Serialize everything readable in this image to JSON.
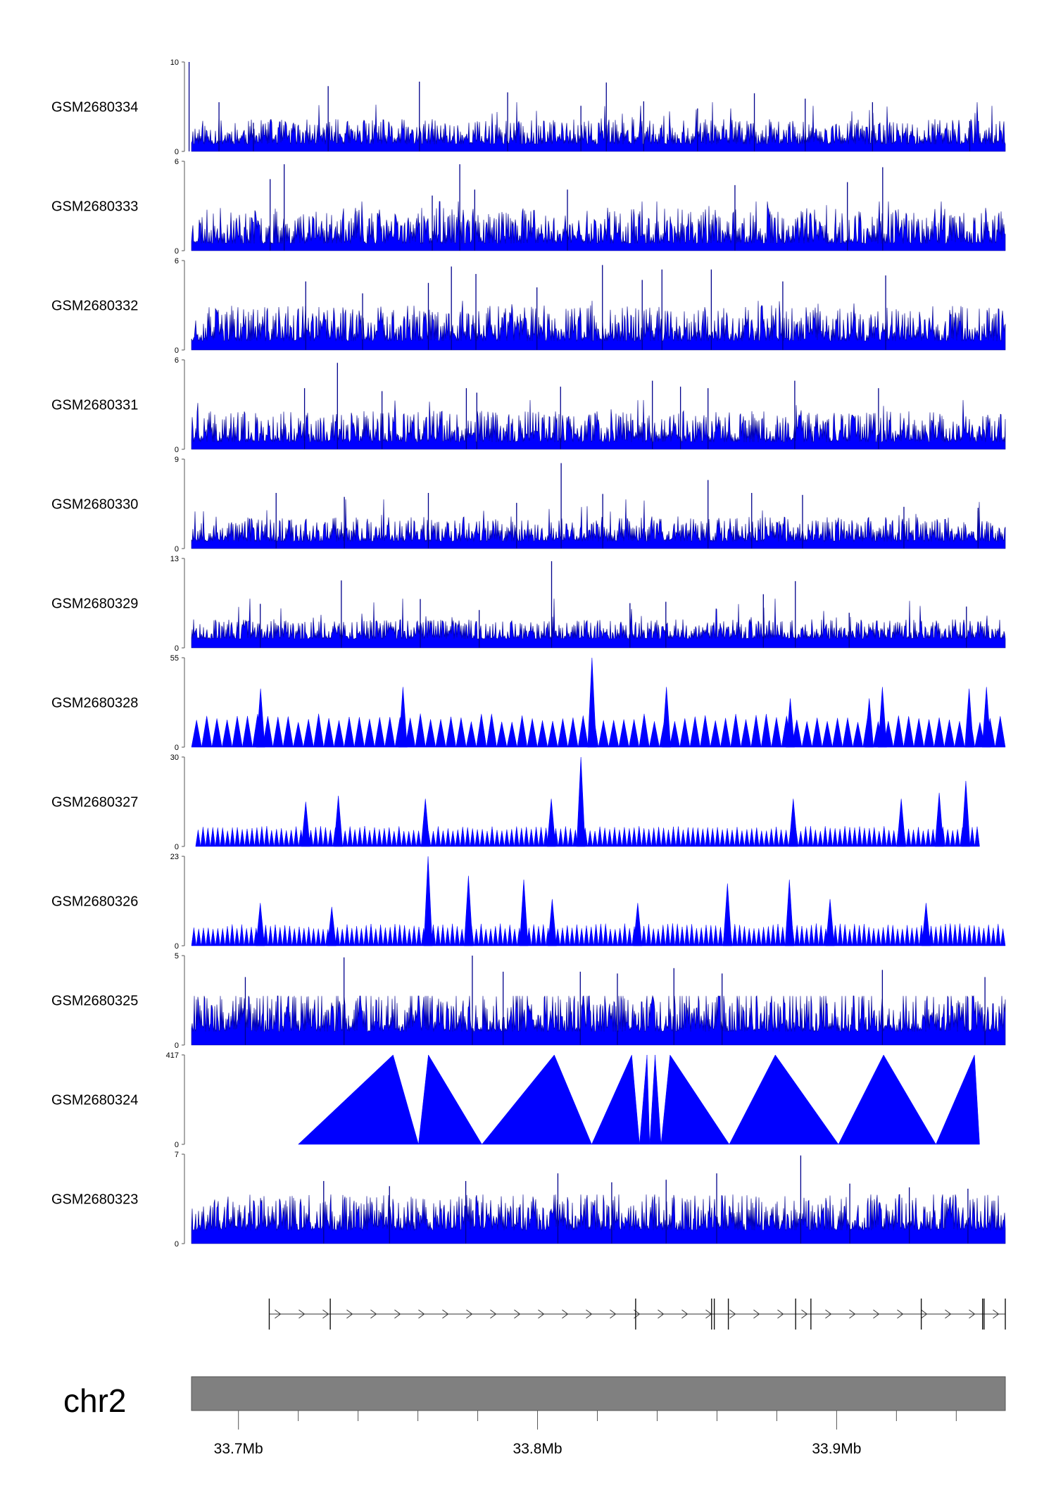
{
  "chart_data": {
    "type": "area",
    "color": "#0000ff",
    "line_color": "#00008b",
    "tracks": [
      {
        "name": "GSM2680334",
        "ymax": 10,
        "ymin": 0,
        "style": "dense",
        "base": 0.08,
        "noise": 0.28,
        "spikes": [
          [
            33.6835,
            10.0
          ],
          [
            33.6935,
            5.5
          ],
          [
            33.705,
            3.2
          ],
          [
            33.73,
            7.3
          ],
          [
            33.7605,
            7.8
          ],
          [
            33.79,
            6.6
          ],
          [
            33.8145,
            5.1
          ],
          [
            33.823,
            7.7
          ],
          [
            33.8355,
            5.6
          ],
          [
            33.8535,
            4.8
          ],
          [
            33.8725,
            6.5
          ],
          [
            33.8895,
            5.9
          ],
          [
            33.912,
            5.5
          ],
          [
            33.9445,
            3.4
          ]
        ],
        "seed": 11
      },
      {
        "name": "GSM2680333",
        "ymax": 6,
        "ymin": 0,
        "style": "dense",
        "base": 0.08,
        "noise": 0.4,
        "spikes": [
          [
            33.7106,
            4.8
          ],
          [
            33.7153,
            5.8
          ],
          [
            33.7648,
            3.7
          ],
          [
            33.774,
            5.8
          ],
          [
            33.779,
            4.1
          ],
          [
            33.81,
            4.1
          ],
          [
            33.866,
            4.4
          ],
          [
            33.9036,
            4.6
          ],
          [
            33.9154,
            5.6
          ]
        ],
        "seed": 23
      },
      {
        "name": "GSM2680332",
        "ymax": 6,
        "ymin": 0,
        "style": "dense",
        "base": 0.1,
        "noise": 0.4,
        "spikes": [
          [
            33.7225,
            4.6
          ],
          [
            33.7415,
            3.8
          ],
          [
            33.7635,
            4.5
          ],
          [
            33.7712,
            5.6
          ],
          [
            33.7794,
            5.1
          ],
          [
            33.7998,
            4.2
          ],
          [
            33.8217,
            5.7
          ],
          [
            33.835,
            4.7
          ],
          [
            33.8416,
            5.4
          ],
          [
            33.8581,
            5.4
          ],
          [
            33.882,
            4.6
          ],
          [
            33.9164,
            5.0
          ]
        ],
        "seed": 37
      },
      {
        "name": "GSM2680331",
        "ymax": 6,
        "ymin": 0,
        "style": "dense",
        "base": 0.08,
        "noise": 0.35,
        "spikes": [
          [
            33.7221,
            4.1
          ],
          [
            33.7331,
            5.8
          ],
          [
            33.748,
            3.9
          ],
          [
            33.7762,
            4.1
          ],
          [
            33.7797,
            3.8
          ],
          [
            33.8077,
            4.2
          ],
          [
            33.8384,
            4.6
          ],
          [
            33.8478,
            4.2
          ],
          [
            33.857,
            4.1
          ],
          [
            33.886,
            4.6
          ],
          [
            33.914,
            4.1
          ]
        ],
        "seed": 41
      },
      {
        "name": "GSM2680330",
        "ymax": 9,
        "ymin": 0,
        "style": "dense",
        "base": 0.08,
        "noise": 0.28,
        "spikes": [
          [
            33.7126,
            5.6
          ],
          [
            33.7354,
            5.2
          ],
          [
            33.7635,
            5.6
          ],
          [
            33.793,
            4.6
          ],
          [
            33.8079,
            8.6
          ],
          [
            33.8218,
            5.5
          ],
          [
            33.857,
            6.9
          ],
          [
            33.8716,
            5.6
          ],
          [
            33.8886,
            5.4
          ],
          [
            33.9225,
            4.2
          ],
          [
            33.9473,
            4.1
          ]
        ],
        "seed": 53
      },
      {
        "name": "GSM2680329",
        "ymax": 13,
        "ymin": 0,
        "style": "dense",
        "base": 0.1,
        "noise": 0.22,
        "spikes": [
          [
            33.7073,
            6.4
          ],
          [
            33.7344,
            9.8
          ],
          [
            33.7608,
            7.1
          ],
          [
            33.7805,
            5.5
          ],
          [
            33.8047,
            12.6
          ],
          [
            33.8309,
            6.5
          ],
          [
            33.8429,
            6.7
          ],
          [
            33.8755,
            7.8
          ],
          [
            33.8862,
            9.7
          ],
          [
            33.9042,
            5.1
          ],
          [
            33.9434,
            6.0
          ]
        ],
        "seed": 67
      },
      {
        "name": "GSM2680328",
        "ymax": 55,
        "ymin": 0,
        "style": "triangles",
        "tri_height": 18,
        "tri_count": 80,
        "spikes": [
          [
            33.7074,
            36.0
          ],
          [
            33.755,
            37.0
          ],
          [
            33.8182,
            55.0
          ],
          [
            33.8431,
            37.0
          ],
          [
            33.8845,
            30.0
          ],
          [
            33.9109,
            30.0
          ],
          [
            33.9153,
            37.0
          ],
          [
            33.9443,
            36.0
          ],
          [
            33.9501,
            37.0
          ]
        ],
        "seed": 71
      },
      {
        "name": "GSM2680327",
        "ymax": 30,
        "ymin": 0,
        "style": "triangles",
        "tri_height": 6,
        "tri_count": 160,
        "x_start": 33.6857,
        "x_end": 33.9478,
        "spikes": [
          [
            33.7225,
            15.0
          ],
          [
            33.7334,
            17.0
          ],
          [
            33.7625,
            16.0
          ],
          [
            33.8046,
            16.0
          ],
          [
            33.8145,
            30.0
          ],
          [
            33.8855,
            16.0
          ],
          [
            33.9216,
            16.0
          ],
          [
            33.9343,
            18.0
          ],
          [
            33.9432,
            22.0
          ]
        ],
        "seed": 83
      },
      {
        "name": "GSM2680326",
        "ymax": 23,
        "ymin": 0,
        "style": "triangles",
        "tri_height": 5,
        "tri_count": 170,
        "spikes": [
          [
            33.7073,
            11.0
          ],
          [
            33.7312,
            10.0
          ],
          [
            33.7634,
            23.0
          ],
          [
            33.7769,
            18.0
          ],
          [
            33.7954,
            17.0
          ],
          [
            33.8049,
            12.0
          ],
          [
            33.8335,
            11.0
          ],
          [
            33.8635,
            16.0
          ],
          [
            33.8842,
            17.0
          ],
          [
            33.8978,
            12.0
          ],
          [
            33.9299,
            11.0
          ]
        ],
        "seed": 97
      },
      {
        "name": "GSM2680325",
        "ymax": 5,
        "ymin": 0,
        "style": "dense",
        "base": 0.15,
        "noise": 0.45,
        "spikes": [
          [
            33.7023,
            3.8
          ],
          [
            33.7353,
            4.9
          ],
          [
            33.7782,
            5.0
          ],
          [
            33.7885,
            4.1
          ],
          [
            33.8143,
            4.1
          ],
          [
            33.8267,
            4.0
          ],
          [
            33.8456,
            4.3
          ],
          [
            33.8617,
            4.0
          ],
          [
            33.9153,
            4.2
          ],
          [
            33.9496,
            3.8
          ]
        ],
        "seed": 109
      },
      {
        "name": "GSM2680324",
        "ymax": 417,
        "ymin": 0,
        "style": "peaks",
        "peaks": [
          [
            33.72,
            33.7517,
            33.7602
          ],
          [
            33.7602,
            33.7635,
            33.7814
          ],
          [
            33.7814,
            33.8056,
            33.8181
          ],
          [
            33.8181,
            33.8315,
            33.8341
          ],
          [
            33.8341,
            33.8366,
            33.8375
          ],
          [
            33.8375,
            33.8393,
            33.8413
          ],
          [
            33.8413,
            33.8443,
            33.8641
          ],
          [
            33.8641,
            33.8795,
            33.9006
          ],
          [
            33.9006,
            33.9157,
            33.9332
          ],
          [
            33.9332,
            33.9461,
            33.9478
          ]
        ],
        "peak_value": 417
      },
      {
        "name": "GSM2680323",
        "ymax": 7,
        "ymin": 0,
        "style": "dense",
        "base": 0.15,
        "noise": 0.4,
        "spikes": [
          [
            33.7285,
            4.9
          ],
          [
            33.7505,
            4.5
          ],
          [
            33.776,
            4.9
          ],
          [
            33.8068,
            5.5
          ],
          [
            33.8248,
            4.8
          ],
          [
            33.843,
            5.0
          ],
          [
            33.8599,
            5.5
          ],
          [
            33.888,
            6.9
          ],
          [
            33.9044,
            4.7
          ],
          [
            33.9243,
            4.4
          ],
          [
            33.9439,
            4.3
          ]
        ],
        "seed": 127
      }
    ],
    "gene_model": {
      "start": 33.7103,
      "end": 33.9564,
      "strand": "+",
      "exons": [
        33.7103,
        33.7307,
        33.8328,
        33.8582,
        33.8591,
        33.8638,
        33.8863,
        33.8914,
        33.9283,
        33.9488,
        33.9493,
        33.9564
      ]
    },
    "chromosome": {
      "name": "chr2",
      "xlim": [
        33.6843,
        33.9564
      ],
      "major_ticks": [
        33.7,
        33.8,
        33.9
      ],
      "major_tick_labels": [
        "33.7Mb",
        "33.8Mb",
        "33.9Mb"
      ],
      "minor_ticks": [
        33.72,
        33.74,
        33.76,
        33.78,
        33.82,
        33.84,
        33.86,
        33.88,
        33.92,
        33.94
      ]
    }
  }
}
